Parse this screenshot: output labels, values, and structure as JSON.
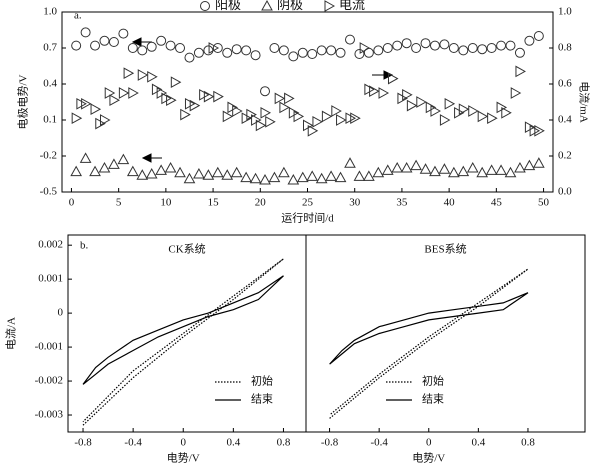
{
  "chart_data": [
    {
      "type": "scatter",
      "panel_label": "a.",
      "xlabel": "运行时间/d",
      "ylabel": "电极电势/V",
      "y2label": "电流/mA",
      "xlim": [
        -1,
        51
      ],
      "xticks": [
        0,
        5,
        10,
        15,
        20,
        25,
        30,
        35,
        40,
        45,
        50
      ],
      "ylim": [
        -0.5,
        1.0
      ],
      "yticks": [
        -0.5,
        -0.2,
        0.1,
        0.4,
        0.7,
        {
          "value": 1,
          "label": "1.0"
        }
      ],
      "y2lim": [
        0,
        1.0
      ],
      "y2ticks": [
        {
          "value": 0,
          "label": "0.0"
        },
        0.2,
        0.4,
        0.6,
        0.8,
        {
          "value": 1,
          "label": "1.0"
        }
      ],
      "legend": "top",
      "series": [
        {
          "name": "阳极",
          "marker": "circle",
          "color": "#333333",
          "x": [
            0.5,
            1.5,
            2.5,
            3.5,
            4.5,
            5.5,
            6.5,
            7.5,
            8.5,
            9.5,
            10.5,
            11.5,
            12.5,
            13.5,
            14.5,
            15.5,
            16.5,
            17.5,
            18.5,
            19.5,
            20.5,
            21.5,
            22.5,
            23.5,
            24.5,
            25.5,
            26.5,
            27.5,
            28.5,
            29.5,
            30.5,
            31.5,
            32.5,
            33.5,
            34.5,
            35.5,
            36.5,
            37.5,
            38.5,
            39.5,
            40.5,
            41.5,
            42.5,
            43.5,
            44.5,
            45.5,
            46.5,
            47.5,
            48.5,
            49.5
          ],
          "values": [
            0.72,
            0.83,
            0.72,
            0.76,
            0.75,
            0.82,
            0.7,
            0.68,
            0.71,
            0.76,
            0.72,
            0.7,
            0.62,
            0.66,
            0.68,
            0.7,
            0.66,
            0.69,
            0.68,
            0.64,
            0.34,
            0.7,
            0.68,
            0.63,
            0.66,
            0.65,
            0.68,
            0.68,
            0.66,
            0.77,
            0.65,
            0.66,
            0.68,
            0.7,
            0.72,
            0.74,
            0.7,
            0.74,
            0.72,
            0.73,
            0.7,
            0.68,
            0.7,
            0.69,
            0.7,
            0.72,
            0.72,
            0.66,
            0.76,
            0.8
          ]
        },
        {
          "name": "阴极",
          "marker": "triangle",
          "color": "#333333",
          "x": [
            0.5,
            1.5,
            2.5,
            3.5,
            4.5,
            5.5,
            6.5,
            7.5,
            8.5,
            9.5,
            10.5,
            11.5,
            12.5,
            13.5,
            14.5,
            15.5,
            16.5,
            17.5,
            18.5,
            19.5,
            20.5,
            21.5,
            22.5,
            23.5,
            24.5,
            25.5,
            26.5,
            27.5,
            28.5,
            29.5,
            30.5,
            31.5,
            32.5,
            33.5,
            34.5,
            35.5,
            36.5,
            37.5,
            38.5,
            39.5,
            40.5,
            41.5,
            42.5,
            43.5,
            44.5,
            45.5,
            46.5,
            47.5,
            48.5,
            49.5
          ],
          "values": [
            -0.33,
            -0.22,
            -0.33,
            -0.3,
            -0.27,
            -0.23,
            -0.33,
            -0.36,
            -0.35,
            -0.32,
            -0.3,
            -0.34,
            -0.39,
            -0.35,
            -0.36,
            -0.34,
            -0.36,
            -0.34,
            -0.38,
            -0.39,
            -0.4,
            -0.38,
            -0.34,
            -0.4,
            -0.38,
            -0.37,
            -0.39,
            -0.37,
            -0.38,
            -0.26,
            -0.37,
            -0.37,
            -0.34,
            -0.32,
            -0.3,
            -0.3,
            -0.28,
            -0.31,
            -0.33,
            -0.31,
            -0.34,
            -0.33,
            -0.3,
            -0.34,
            -0.32,
            -0.32,
            -0.34,
            -0.3,
            -0.28,
            -0.26
          ]
        },
        {
          "name": "电流",
          "marker": "triangle-right",
          "color": "#333333",
          "axis": "y2",
          "x": [
            0.5,
            1,
            1.5,
            2.5,
            3,
            3.5,
            4,
            4.5,
            5.5,
            6,
            6.5,
            7.5,
            8.5,
            9,
            9.5,
            10,
            10.5,
            11,
            12,
            12.5,
            13,
            14,
            14.5,
            15,
            15.5,
            16.5,
            17,
            17.5,
            18.5,
            19,
            19.5,
            20,
            20.5,
            21,
            22,
            22.5,
            23,
            23.5,
            24,
            25,
            25.5,
            26,
            27,
            28,
            28.5,
            29.5,
            30,
            31,
            31.5,
            32,
            33,
            34,
            35,
            35.5,
            36,
            37,
            38,
            38.5,
            39.5,
            40,
            41,
            41.5,
            42.5,
            43.5,
            44.5,
            45.5,
            46,
            47,
            47.5,
            48.5,
            49,
            49.5
          ],
          "values": [
            0.41,
            0.49,
            0.49,
            0.46,
            0.38,
            0.4,
            0.55,
            0.51,
            0.55,
            0.66,
            0.55,
            0.65,
            0.64,
            0.57,
            0.55,
            0.52,
            0.51,
            0.61,
            0.43,
            0.49,
            0.48,
            0.54,
            0.53,
            0.8,
            0.53,
            0.42,
            0.47,
            0.45,
            0.41,
            0.43,
            0.4,
            0.37,
            0.44,
            0.39,
            0.52,
            0.47,
            0.52,
            0.44,
            0.42,
            0.37,
            0.34,
            0.39,
            0.42,
            0.45,
            0.4,
            0.41,
            0.41,
            0.8,
            0.57,
            0.56,
            0.55,
            0.63,
            0.52,
            0.54,
            0.48,
            0.5,
            0.47,
            0.45,
            0.4,
            0.49,
            0.44,
            0.46,
            0.45,
            0.42,
            0.41,
            0.47,
            0.44,
            0.55,
            0.67,
            0.36,
            0.34,
            0.34
          ]
        }
      ]
    },
    {
      "type": "line",
      "panel_label": "b.",
      "title": "CK系统",
      "xlabel": "电势/V",
      "ylabel": "电流/A",
      "xlim": [
        -0.92,
        0.98
      ],
      "xticks": [
        -0.8,
        -0.4,
        0,
        0.4,
        0.8
      ],
      "ylim": [
        -0.0035,
        0.0023
      ],
      "yticks": [
        -0.003,
        -0.002,
        -0.001,
        0,
        0.001,
        0.002
      ],
      "legend": "lower right",
      "series": [
        {
          "name": "初始",
          "linestyle": "dotted",
          "color": "#000000",
          "x": [
            -0.8,
            -0.4,
            0,
            0.4,
            0.8,
            0.4,
            0,
            -0.4,
            -0.8
          ],
          "values": [
            -0.0033,
            -0.0019,
            -0.0007,
            0.0004,
            0.0016,
            0.0005,
            -0.0006,
            -0.0017,
            -0.0032
          ]
        },
        {
          "name": "结束",
          "linestyle": "solid",
          "color": "#000000",
          "x": [
            -0.8,
            -0.7,
            -0.6,
            -0.4,
            -0.2,
            0,
            0.2,
            0.4,
            0.6,
            0.8,
            0.6,
            0.4,
            0.2,
            0,
            -0.2,
            -0.4,
            -0.6,
            -0.7,
            -0.8
          ],
          "values": [
            -0.0021,
            -0.0016,
            -0.0013,
            -0.0008,
            -0.0005,
            -0.0002,
            0,
            0.0003,
            0.0006,
            0.0011,
            0.0004,
            0.0001,
            -0.0001,
            -0.0004,
            -0.0007,
            -0.0011,
            -0.0015,
            -0.0018,
            -0.0021
          ]
        }
      ]
    },
    {
      "type": "line",
      "title": "BES系统",
      "xlabel": "电势/V",
      "xlim": [
        -0.99,
        1.26
      ],
      "xticks": [
        -0.8,
        -0.4,
        0,
        0.4,
        0.8
      ],
      "ylim": [
        -0.0035,
        0.0023
      ],
      "legend": "lower right",
      "series": [
        {
          "name": "初始",
          "linestyle": "dotted",
          "color": "#000000",
          "x": [
            -0.8,
            -0.4,
            0,
            0.4,
            0.8,
            0.4,
            0,
            -0.4,
            -0.8
          ],
          "values": [
            -0.0031,
            -0.0019,
            -0.0008,
            0.0002,
            0.0013,
            0.0003,
            -0.0007,
            -0.0018,
            -0.003
          ]
        },
        {
          "name": "结束",
          "linestyle": "solid",
          "color": "#000000",
          "x": [
            -0.8,
            -0.7,
            -0.6,
            -0.4,
            -0.2,
            0,
            0.2,
            0.4,
            0.6,
            0.8,
            0.6,
            0.4,
            0.2,
            0,
            -0.2,
            -0.4,
            -0.6,
            -0.7,
            -0.8
          ],
          "values": [
            -0.0015,
            -0.0011,
            -0.0008,
            -0.0004,
            -0.0002,
            0,
            0.0001,
            0.0002,
            0.0003,
            0.0006,
            0.0001,
            0,
            -0.0001,
            -0.0002,
            -0.0004,
            -0.0006,
            -0.0009,
            -0.0012,
            -0.0015
          ]
        }
      ]
    }
  ]
}
